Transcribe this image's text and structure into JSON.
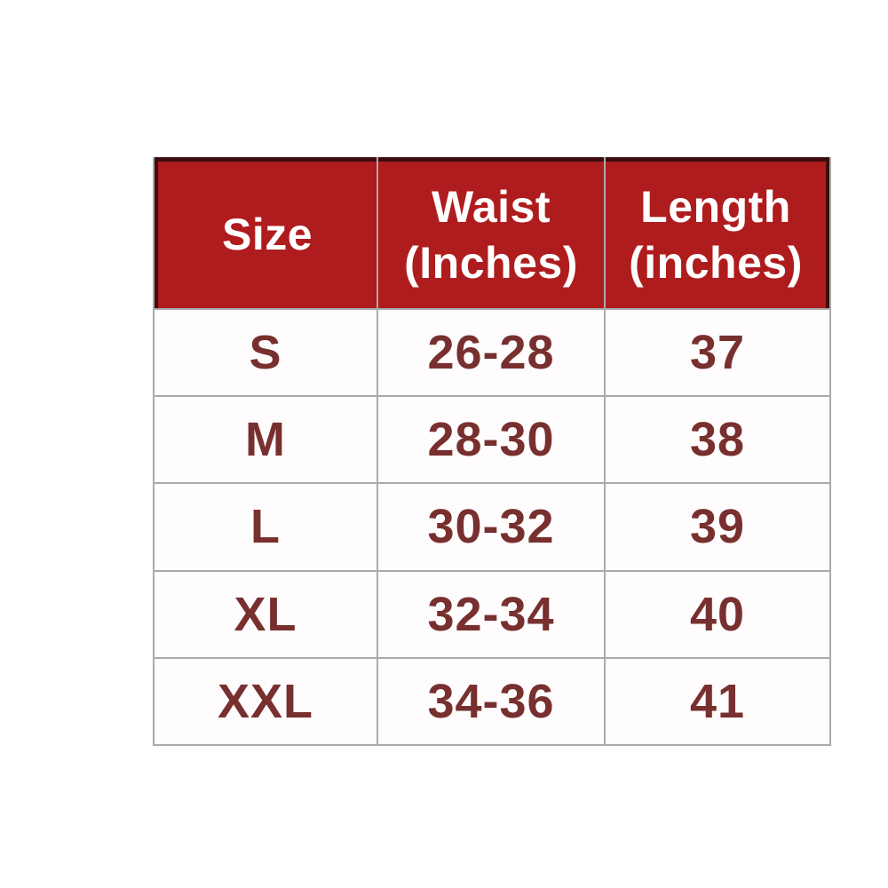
{
  "chart_data": {
    "type": "table",
    "columns": [
      "Size",
      "Waist (Inches)",
      "Length (inches)"
    ],
    "rows": [
      [
        "S",
        "26-28",
        "37"
      ],
      [
        "M",
        "28-30",
        "38"
      ],
      [
        "L",
        "30-32",
        "39"
      ],
      [
        "XL",
        "32-34",
        "40"
      ],
      [
        "XXL",
        "34-36",
        "41"
      ]
    ]
  },
  "table": {
    "header_lines": [
      [
        "Size",
        ""
      ],
      [
        "Waist",
        "(Inches)"
      ],
      [
        "Length",
        "(inches)"
      ]
    ],
    "colors": {
      "header_bg": "#af1c1e",
      "header_text": "#ffffff",
      "header_outline": "#3e0e0e",
      "body_text": "#77302f",
      "grid_line": "#ababab",
      "cell_bg": "#fefcfc",
      "page_bg": "#ffffff"
    }
  }
}
